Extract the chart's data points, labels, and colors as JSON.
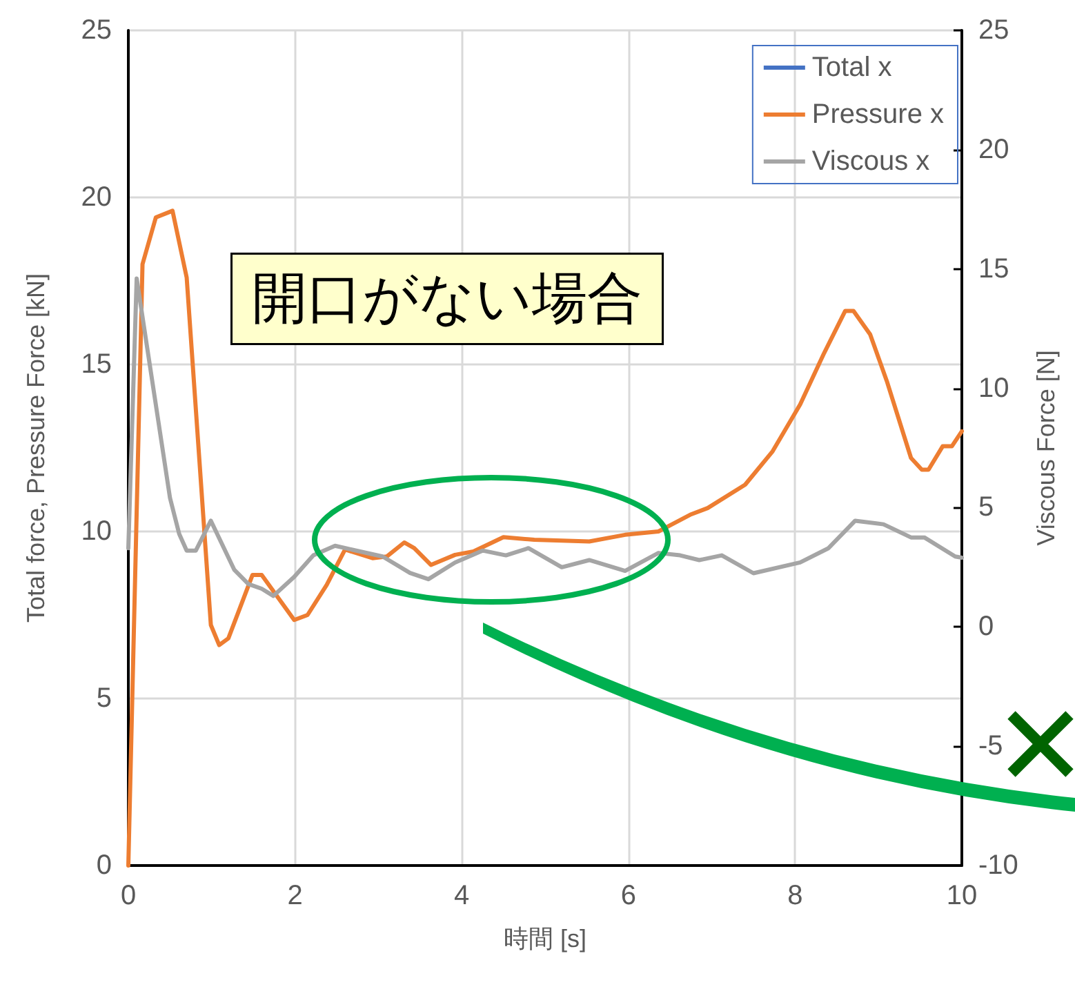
{
  "chart_data": {
    "type": "line",
    "xlabel": "時間 [s]",
    "ylabel": "Total force, Pressure Force [kN]",
    "y2label": "Viscous Force [N]",
    "annotations": [
      "開口がない場合"
    ],
    "xlim": [
      0,
      10
    ],
    "xticks": [
      0,
      2,
      4,
      6,
      8,
      10
    ],
    "ylim": [
      0,
      25
    ],
    "yticks": [
      0,
      5,
      10,
      15,
      20,
      25
    ],
    "y2lim": [
      -10,
      25
    ],
    "y2ticks": [
      -10,
      -5,
      0,
      5,
      10,
      15,
      20,
      25
    ],
    "grid": true,
    "legend": "top right",
    "marker": "none",
    "line_style": "solid",
    "series": [
      {
        "name": "Total x",
        "color": "#4472c4"
      },
      {
        "name": "Pressure x",
        "color": "#ed7d31",
        "x": [
          0,
          0.17,
          0.33,
          0.53,
          0.7,
          0.99,
          1.09,
          1.2,
          1.49,
          1.6,
          1.99,
          2.15,
          2.38,
          2.6,
          2.93,
          3.1,
          3.31,
          3.43,
          3.63,
          3.92,
          4.14,
          4.5,
          4.87,
          5.53,
          5.96,
          6.36,
          6.74,
          6.95,
          7.4,
          7.73,
          8.06,
          8.34,
          8.6,
          8.7,
          8.9,
          9.1,
          9.39,
          9.52,
          9.6,
          9.77,
          9.88,
          10
        ],
        "values": [
          0,
          18,
          19.4,
          19.6,
          17.6,
          7.2,
          6.6,
          6.8,
          8.7,
          8.7,
          7.35,
          7.5,
          8.4,
          9.46,
          9.2,
          9.25,
          9.67,
          9.5,
          9.0,
          9.3,
          9.4,
          9.83,
          9.75,
          9.7,
          9.9,
          10.0,
          10.5,
          10.7,
          11.4,
          12.4,
          13.8,
          15.3,
          16.6,
          16.6,
          15.9,
          14.5,
          12.2,
          11.85,
          11.85,
          12.55,
          12.55,
          13.0
        ]
      },
      {
        "name": "Viscous x",
        "color": "#a5a5a5",
        "axis": "y2",
        "x": [
          0,
          0.1,
          0.5,
          0.61,
          0.7,
          0.81,
          0.99,
          1.27,
          1.44,
          1.6,
          1.74,
          1.99,
          2.22,
          2.48,
          3.05,
          3.38,
          3.6,
          3.92,
          4.25,
          4.53,
          4.8,
          5.2,
          5.53,
          5.96,
          6.36,
          6.62,
          6.85,
          7.12,
          7.5,
          8.06,
          8.4,
          8.72,
          9.06,
          9.39,
          9.55,
          9.92,
          10
        ],
        "values": [
          3.3,
          14.6,
          5.4,
          3.9,
          3.2,
          3.2,
          4.45,
          2.4,
          1.8,
          1.6,
          1.3,
          2.1,
          3.0,
          3.4,
          2.95,
          2.26,
          2.0,
          2.7,
          3.2,
          3.0,
          3.3,
          2.5,
          2.8,
          2.35,
          3.1,
          3.0,
          2.8,
          3.0,
          2.25,
          2.7,
          3.3,
          4.45,
          4.3,
          3.75,
          3.75,
          2.95,
          2.9
        ]
      }
    ]
  }
}
